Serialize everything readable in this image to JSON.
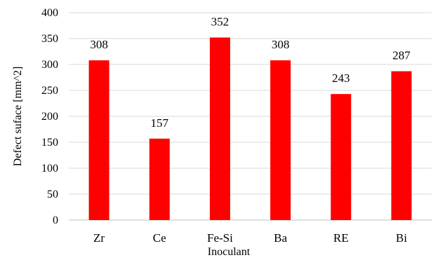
{
  "chart_data": {
    "type": "bar",
    "categories": [
      "Zr",
      "Ce",
      "Fe-Si",
      "Ba",
      "RE",
      "Bi"
    ],
    "values": [
      308,
      157,
      352,
      308,
      243,
      287
    ],
    "data_labels": [
      "308",
      "157",
      "352",
      "308",
      "243",
      "287"
    ],
    "title": "",
    "xlabel": "Inoculant",
    "ylabel": "Defect suface [mm^2]",
    "ylim": [
      0,
      400
    ],
    "yticks": [
      0,
      50,
      100,
      150,
      200,
      250,
      300,
      350,
      400
    ],
    "ytick_labels": [
      "0",
      "50",
      "100",
      "150",
      "200",
      "250",
      "300",
      "350",
      "400"
    ],
    "grid": true,
    "legend": "none",
    "bar_color": "#ff0000",
    "grid_color": "#d9d9d9"
  }
}
